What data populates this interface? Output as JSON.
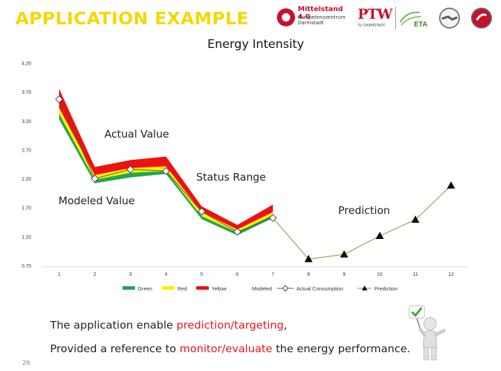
{
  "slide": {
    "title": "APPLICATION  EXAMPLE",
    "page_number": "26",
    "accent_color": "#f5d800",
    "highlight_color": "#e8161b"
  },
  "logos": {
    "mittelstand_name": "Mittelstand 4.0",
    "mittelstand_sub1": "Kompetenzzentrum",
    "mittelstand_sub2": "Darmstadt",
    "ptw": "PTW",
    "ptw_sub": "TU DARMSTADT",
    "eta": "ETA"
  },
  "annotations": {
    "actual": "Actual Value",
    "status": "Status Range",
    "modeled": "Modeled Value",
    "prediction": "Prediction"
  },
  "bottom": {
    "line1_pre": "The application enable ",
    "line1_hl": "prediction/targeting",
    "line1_post": ",",
    "line2_pre": "Provided a reference to ",
    "line2_hl": "monitor/evaluate",
    "line2_post": " the energy performance."
  },
  "chart_data": {
    "type": "line",
    "title": "Energy Intensity",
    "x": [
      "1",
      "2",
      "3",
      "4",
      "5",
      "6",
      "7",
      "8",
      "9",
      "10",
      "11",
      "12"
    ],
    "ylim": [
      0.7,
      4.2
    ],
    "yticks": [
      "0.70",
      "1.20",
      "1.70",
      "2.20",
      "2.70",
      "3.20",
      "3.70",
      "4.20"
    ],
    "grid": false,
    "legend_position": "bottom",
    "legend": [
      "Green",
      "Red",
      "Yellow",
      "Modeled",
      "Actual Consumption",
      "Prediction"
    ],
    "bands": {
      "x": [
        1,
        2,
        3,
        4,
        5,
        6,
        7
      ],
      "green_low": [
        3.22,
        2.12,
        2.22,
        2.28,
        1.5,
        1.22,
        1.52
      ],
      "green_high": [
        3.32,
        2.18,
        2.3,
        2.33,
        1.55,
        1.27,
        1.57
      ],
      "yellow_high": [
        3.42,
        2.26,
        2.38,
        2.41,
        1.62,
        1.32,
        1.62
      ],
      "red_high": [
        3.75,
        2.4,
        2.52,
        2.58,
        1.72,
        1.4,
        1.75
      ]
    },
    "series": [
      {
        "name": "Actual Consumption",
        "x": [
          1,
          2,
          3,
          4,
          5,
          6,
          7
        ],
        "values": [
          3.57,
          2.2,
          2.36,
          2.33,
          1.63,
          1.28,
          1.52
        ],
        "color": "#555555",
        "marker": "diamond"
      },
      {
        "name": "Prediction",
        "x": [
          7,
          8,
          9,
          10,
          11,
          12
        ],
        "values": [
          1.52,
          0.81,
          0.89,
          1.21,
          1.49,
          2.08
        ],
        "color": "#8a8a3a",
        "marker": "triangle"
      }
    ],
    "colors": {
      "green": "#1fa84f",
      "yellow": "#ffee00",
      "red": "#ee1111"
    }
  }
}
